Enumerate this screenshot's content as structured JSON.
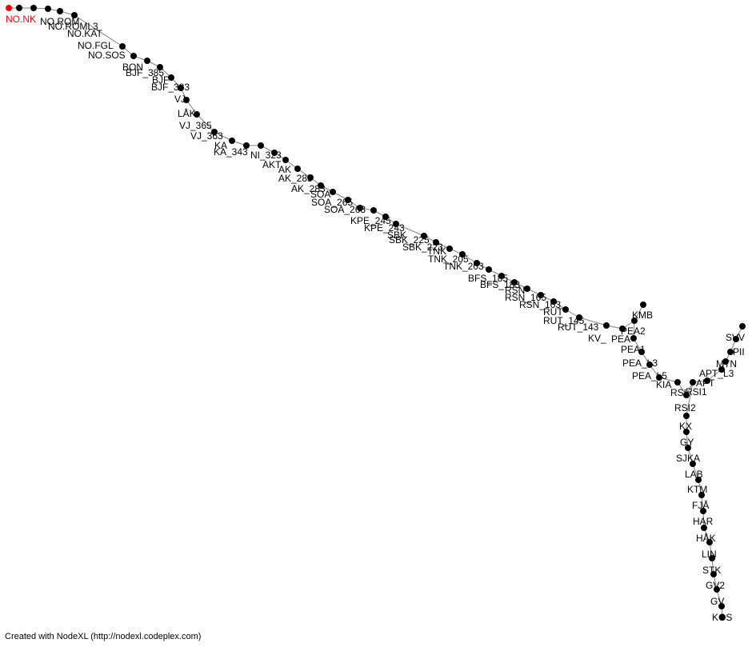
{
  "graph": {
    "edge_color": "#808080",
    "node_color": "#000000",
    "highlight_color": "#ff0000",
    "nodes": [
      {
        "id": "n1",
        "label": "NO.NK",
        "highlight": true
      },
      {
        "id": "n2",
        "label": ""
      },
      {
        "id": "n3",
        "label": ""
      },
      {
        "id": "n4",
        "label": "NO.ROM"
      },
      {
        "id": "n5",
        "label": "NO.ROML3"
      },
      {
        "id": "n6",
        "label": "NO.KAT"
      },
      {
        "id": "n7",
        "label": "NO.FGL"
      },
      {
        "id": "n8",
        "label": "NO.SOS"
      },
      {
        "id": "n9",
        "label": "BON"
      },
      {
        "id": "n10",
        "label": "BJF_385"
      },
      {
        "id": "n11",
        "label": "BJF"
      },
      {
        "id": "n12",
        "label": "BJF_383"
      },
      {
        "id": "n13",
        "label": "VJ"
      },
      {
        "id": "n14",
        "label": "LÅK"
      },
      {
        "id": "n15",
        "label": "VJ_365"
      },
      {
        "id": "n16",
        "label": "VJ_363"
      },
      {
        "id": "n17",
        "label": "KA"
      },
      {
        "id": "n18",
        "label": "KA_343"
      },
      {
        "id": "n19",
        "label": "NI_323"
      },
      {
        "id": "n20",
        "label": "AKT"
      },
      {
        "id": "n21",
        "label": "AK"
      },
      {
        "id": "n22",
        "label": "AK_285"
      },
      {
        "id": "n23",
        "label": "AK_283"
      },
      {
        "id": "n24",
        "label": "SOA"
      },
      {
        "id": "n25",
        "label": "SOA_265"
      },
      {
        "id": "n26",
        "label": "SOA_263"
      },
      {
        "id": "n27",
        "label": "KPE_245"
      },
      {
        "id": "n28",
        "label": "KPE_243"
      },
      {
        "id": "n29",
        "label": "SBK"
      },
      {
        "id": "n30",
        "label": "SBK_225"
      },
      {
        "id": "n31",
        "label": "SBK_223"
      },
      {
        "id": "n32",
        "label": "TNK"
      },
      {
        "id": "n33",
        "label": "TNK_205"
      },
      {
        "id": "n34",
        "label": "TNK_203"
      },
      {
        "id": "n35",
        "label": "BFS_185"
      },
      {
        "id": "n36",
        "label": "BFS_183"
      },
      {
        "id": "n37",
        "label": "RSN"
      },
      {
        "id": "n38",
        "label": "RSN_165"
      },
      {
        "id": "n39",
        "label": "RSN_163"
      },
      {
        "id": "n40",
        "label": "RUT"
      },
      {
        "id": "n41",
        "label": "RUT_145"
      },
      {
        "id": "n42",
        "label": "RUT_143"
      },
      {
        "id": "n43",
        "label": "KV_"
      },
      {
        "id": "n44",
        "label": "PEA"
      },
      {
        "id": "n45",
        "label": "PEA2"
      },
      {
        "id": "n46",
        "label": "KMB"
      },
      {
        "id": "n47",
        "label": ""
      },
      {
        "id": "n48",
        "label": "PEA1"
      },
      {
        "id": "n49",
        "label": "PEA_L3"
      },
      {
        "id": "n50",
        "label": "PEA_L5"
      },
      {
        "id": "n51",
        "label": "KIA"
      },
      {
        "id": "n52",
        "label": "RSI"
      },
      {
        "id": "n53",
        "label": "RSI1"
      },
      {
        "id": "n54",
        "label": "APT"
      },
      {
        "id": "n55",
        "label": "APT_L3"
      },
      {
        "id": "n56",
        "label": "MTN"
      },
      {
        "id": "n57",
        "label": "PII"
      },
      {
        "id": "n58",
        "label": "SVV"
      },
      {
        "id": "n59",
        "label": ""
      },
      {
        "id": "n60",
        "label": "RSI2"
      },
      {
        "id": "n61",
        "label": "KX"
      },
      {
        "id": "n62",
        "label": "GY"
      },
      {
        "id": "n63",
        "label": "SJKA"
      },
      {
        "id": "n64",
        "label": "LAB"
      },
      {
        "id": "n65",
        "label": "KTM"
      },
      {
        "id": "n66",
        "label": "FJÅ"
      },
      {
        "id": "n67",
        "label": "HAR"
      },
      {
        "id": "n68",
        "label": "HÅK"
      },
      {
        "id": "n69",
        "label": "LIN"
      },
      {
        "id": "n70",
        "label": "STK"
      },
      {
        "id": "n71",
        "label": "GV2"
      },
      {
        "id": "n72",
        "label": "GV"
      },
      {
        "id": "n73",
        "label": "KOS"
      }
    ],
    "edges": [
      [
        "n1",
        "n2"
      ],
      [
        "n2",
        "n3"
      ],
      [
        "n3",
        "n4"
      ],
      [
        "n4",
        "n5"
      ],
      [
        "n5",
        "n6"
      ],
      [
        "n6",
        "n7"
      ],
      [
        "n7",
        "n8"
      ],
      [
        "n8",
        "n9"
      ],
      [
        "n9",
        "n10"
      ],
      [
        "n10",
        "n11"
      ],
      [
        "n11",
        "n12"
      ],
      [
        "n12",
        "n13"
      ],
      [
        "n13",
        "n14"
      ],
      [
        "n14",
        "n15"
      ],
      [
        "n15",
        "n16"
      ],
      [
        "n16",
        "n17"
      ],
      [
        "n17",
        "n18"
      ],
      [
        "n18",
        "n19"
      ],
      [
        "n19",
        "n20"
      ],
      [
        "n20",
        "n21"
      ],
      [
        "n21",
        "n22"
      ],
      [
        "n22",
        "n23"
      ],
      [
        "n23",
        "n24"
      ],
      [
        "n24",
        "n25"
      ],
      [
        "n25",
        "n26"
      ],
      [
        "n26",
        "n27"
      ],
      [
        "n27",
        "n28"
      ],
      [
        "n28",
        "n29"
      ],
      [
        "n29",
        "n30"
      ],
      [
        "n30",
        "n31"
      ],
      [
        "n31",
        "n32"
      ],
      [
        "n32",
        "n33"
      ],
      [
        "n33",
        "n34"
      ],
      [
        "n34",
        "n35"
      ],
      [
        "n35",
        "n36"
      ],
      [
        "n36",
        "n37"
      ],
      [
        "n37",
        "n38"
      ],
      [
        "n38",
        "n39"
      ],
      [
        "n39",
        "n40"
      ],
      [
        "n40",
        "n41"
      ],
      [
        "n41",
        "n42"
      ],
      [
        "n42",
        "n43"
      ],
      [
        "n43",
        "n44"
      ],
      [
        "n44",
        "n45"
      ],
      [
        "n45",
        "n46"
      ],
      [
        "n45",
        "n47"
      ],
      [
        "n47",
        "n48"
      ],
      [
        "n48",
        "n49"
      ],
      [
        "n49",
        "n50"
      ],
      [
        "n50",
        "n51"
      ],
      [
        "n51",
        "n52"
      ],
      [
        "n52",
        "n53"
      ],
      [
        "n53",
        "n54"
      ],
      [
        "n54",
        "n55"
      ],
      [
        "n55",
        "n56"
      ],
      [
        "n56",
        "n57"
      ],
      [
        "n57",
        "n58"
      ],
      [
        "n58",
        "n59"
      ],
      [
        "n53",
        "n60"
      ],
      [
        "n60",
        "n61"
      ],
      [
        "n61",
        "n62"
      ],
      [
        "n62",
        "n63"
      ],
      [
        "n63",
        "n64"
      ],
      [
        "n64",
        "n65"
      ],
      [
        "n65",
        "n66"
      ],
      [
        "n66",
        "n67"
      ],
      [
        "n67",
        "n68"
      ],
      [
        "n68",
        "n69"
      ],
      [
        "n69",
        "n70"
      ],
      [
        "n70",
        "n71"
      ],
      [
        "n71",
        "n72"
      ],
      [
        "n72",
        "n73"
      ]
    ]
  },
  "footer": {
    "credit": "Created with NodeXL (http://nodexl.codeplex.com)"
  }
}
